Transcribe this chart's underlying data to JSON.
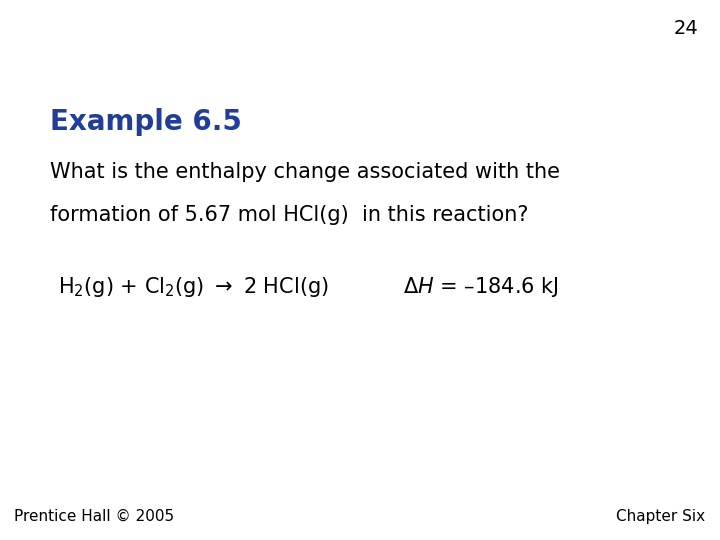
{
  "background_color": "#ffffff",
  "slide_number": "24",
  "slide_number_fontsize": 14,
  "slide_number_color": "#000000",
  "example_title": "Example 6.5",
  "example_title_fontsize": 20,
  "example_title_color": "#1F3D99",
  "body_line1": "What is the enthalpy change associated with the",
  "body_line2": "formation of 5.67 mol HCl(g)  in this reaction?",
  "body_fontsize": 15,
  "body_color": "#000000",
  "equation_fontsize": 15,
  "equation_color": "#000000",
  "dh_value": "–184.6 kJ",
  "footer_left": "Prentice Hall © 2005",
  "footer_right": "Chapter Six",
  "footer_fontsize": 11,
  "footer_color": "#000000"
}
